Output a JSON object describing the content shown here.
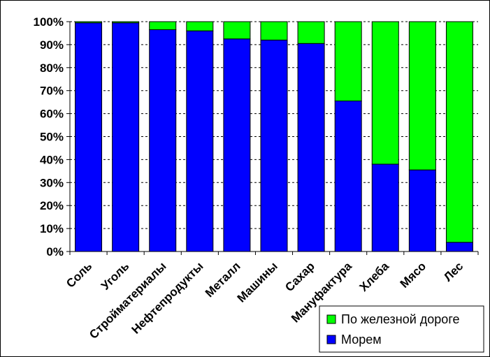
{
  "chart_data": {
    "type": "bar",
    "stacked": true,
    "percent": true,
    "categories": [
      "Соль",
      "Уголь",
      "Стройматериалы",
      "Нефтепродукты",
      "Металл",
      "Машины",
      "Сахар",
      "Мануфактура",
      "Хлеба",
      "Мясо",
      "Лес"
    ],
    "series": [
      {
        "name": "Морем",
        "color": "#0000FF",
        "values": [
          99.5,
          99.5,
          96.5,
          96,
          92.5,
          92,
          90.5,
          65.5,
          38,
          35.5,
          4
        ]
      },
      {
        "name": "По железной дороге",
        "color": "#00FF00",
        "values": [
          0.5,
          0.5,
          3.5,
          4,
          7.5,
          8,
          9.5,
          34.5,
          62,
          64.5,
          96
        ]
      }
    ],
    "ylim": [
      0,
      100
    ],
    "yticks": [
      "0%",
      "10%",
      "20%",
      "30%",
      "40%",
      "50%",
      "60%",
      "70%",
      "80%",
      "90%",
      "100%"
    ],
    "grid": true,
    "legend_position": "bottom-right",
    "legend_order": [
      "По железной дороге",
      "Морем"
    ]
  }
}
